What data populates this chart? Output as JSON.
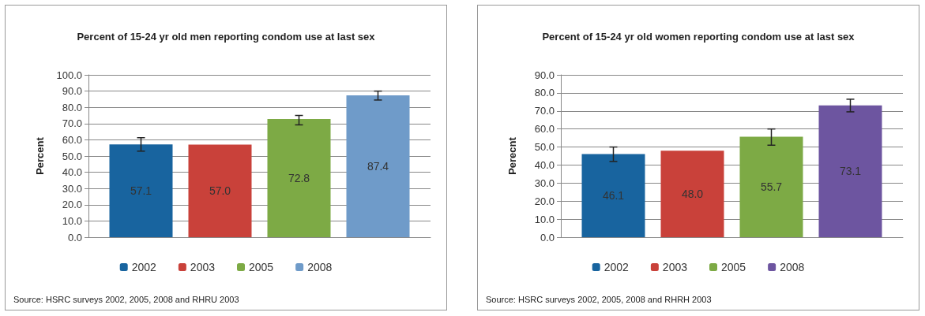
{
  "chart_data": [
    {
      "type": "bar",
      "title": "Percent of 15-24 yr old men reporting condom use at last sex",
      "ylabel": "Percent",
      "categories": [
        null
      ],
      "series": [
        {
          "name": "2002",
          "color": "#18649f",
          "values": [
            57.1
          ],
          "value_labels": [
            "57.1"
          ],
          "errors": [
            [
              53.0,
              61.3
            ]
          ]
        },
        {
          "name": "2003",
          "color": "#c9413a",
          "values": [
            57.0
          ],
          "value_labels": [
            "57.0"
          ]
        },
        {
          "name": "2005",
          "color": "#7daa45",
          "values": [
            72.8
          ],
          "value_labels": [
            "72.8"
          ],
          "errors": [
            [
              69.2,
              75.0
            ]
          ]
        },
        {
          "name": "2008",
          "color": "#6f9bc9",
          "values": [
            87.4
          ],
          "value_labels": [
            "87.4"
          ],
          "errors": [
            [
              84.5,
              90.0
            ]
          ]
        }
      ],
      "ylim": [
        0,
        100
      ],
      "yticks": [
        {
          "value": 0,
          "label": "0.0"
        },
        {
          "value": 10,
          "label": "10.0"
        },
        {
          "value": 20,
          "label": "20.0"
        },
        {
          "value": 30,
          "label": "30.0"
        },
        {
          "value": 40,
          "label": "40.0"
        },
        {
          "value": 50,
          "label": "50.0"
        },
        {
          "value": 60,
          "label": "60.0"
        },
        {
          "value": 70,
          "label": "70.0"
        },
        {
          "value": 80,
          "label": "80.0"
        },
        {
          "value": 90,
          "label": "90.0"
        },
        {
          "value": 100,
          "label": "100.0"
        }
      ],
      "grid": "y",
      "legend": "bottom",
      "annotations": [
        "Source: HSRC surveys 2002, 2005, 2008 and RHRU 2003"
      ]
    },
    {
      "type": "bar",
      "title": "Percent of 15-24 yr old women reporting condom use at last sex",
      "ylabel": "Perecnt",
      "categories": [
        null
      ],
      "series": [
        {
          "name": "2002",
          "color": "#18649f",
          "values": [
            46.1
          ],
          "value_labels": [
            "46.1"
          ],
          "errors": [
            [
              42.0,
              50.0
            ]
          ]
        },
        {
          "name": "2003",
          "color": "#c9413a",
          "values": [
            48.0
          ],
          "value_labels": [
            "48.0"
          ]
        },
        {
          "name": "2005",
          "color": "#7daa45",
          "values": [
            55.7
          ],
          "value_labels": [
            "55.7"
          ],
          "errors": [
            [
              51.0,
              60.0
            ]
          ]
        },
        {
          "name": "2008",
          "color": "#6d55a0",
          "values": [
            73.1
          ],
          "value_labels": [
            "73.1"
          ],
          "errors": [
            [
              69.5,
              76.5
            ]
          ]
        }
      ],
      "ylim": [
        0,
        90
      ],
      "yticks": [
        {
          "value": 0,
          "label": "0.0"
        },
        {
          "value": 10,
          "label": "10.0"
        },
        {
          "value": 20,
          "label": "20.0"
        },
        {
          "value": 30,
          "label": "30.0"
        },
        {
          "value": 40,
          "label": "40.0"
        },
        {
          "value": 50,
          "label": "50.0"
        },
        {
          "value": 60,
          "label": "60.0"
        },
        {
          "value": 70,
          "label": "70.0"
        },
        {
          "value": 80,
          "label": "80.0"
        },
        {
          "value": 90,
          "label": "90.0"
        }
      ],
      "grid": "y",
      "legend": "bottom",
      "annotations": [
        "Source: HSRC surveys 2002, 2005, 2008 and RHRH 2003"
      ]
    }
  ]
}
